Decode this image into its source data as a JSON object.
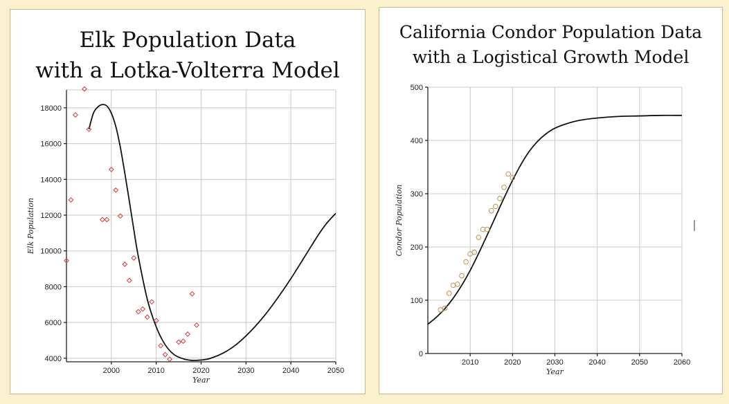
{
  "elk": {
    "title_line1": "Elk Population Data",
    "title_line2": "with a Lotka-Volterra Model"
  },
  "condor": {
    "title_line1": "California Condor Population Data",
    "title_line2": "with a Logistical Growth Model"
  },
  "chart_data": [
    {
      "type": "scatter",
      "title": "Elk Population Data with a Lotka-Volterra Model",
      "xlabel": "Year",
      "ylabel": "Elk Population",
      "xlim": [
        1990,
        2050
      ],
      "ylim": [
        3800,
        19000
      ],
      "xticks": [
        2000,
        2010,
        2020,
        2030,
        2040,
        2050
      ],
      "yticks": [
        4000,
        6000,
        8000,
        10000,
        12000,
        14000,
        16000,
        18000
      ],
      "grid": true,
      "marker": "diamond",
      "marker_color": "#d63a3a",
      "curve_color": "#111111",
      "points": [
        [
          1990,
          9450
        ],
        [
          1991,
          12850
        ],
        [
          1992,
          17600
        ],
        [
          1994,
          19050
        ],
        [
          1995,
          16800
        ],
        [
          1998,
          11750
        ],
        [
          1999,
          11750
        ],
        [
          2000,
          14550
        ],
        [
          2001,
          13400
        ],
        [
          2002,
          11950
        ],
        [
          2003,
          9250
        ],
        [
          2004,
          8350
        ],
        [
          2005,
          9600
        ],
        [
          2006,
          6600
        ],
        [
          2007,
          6750
        ],
        [
          2008,
          6300
        ],
        [
          2009,
          7150
        ],
        [
          2010,
          6100
        ],
        [
          2011,
          4700
        ],
        [
          2012,
          4200
        ],
        [
          2013,
          3950
        ],
        [
          2015,
          4900
        ],
        [
          2016,
          4950
        ],
        [
          2017,
          5350
        ],
        [
          2018,
          7600
        ],
        [
          2019,
          5850
        ]
      ],
      "model_curve": [
        [
          1995,
          16800
        ],
        [
          1996,
          17700
        ],
        [
          1997,
          18050
        ],
        [
          1998,
          18180
        ],
        [
          1999,
          18100
        ],
        [
          2000,
          17700
        ],
        [
          2001,
          16950
        ],
        [
          2002,
          15800
        ],
        [
          2003,
          14350
        ],
        [
          2004,
          12800
        ],
        [
          2005,
          11200
        ],
        [
          2006,
          9700
        ],
        [
          2008,
          7300
        ],
        [
          2010,
          5750
        ],
        [
          2012,
          4750
        ],
        [
          2014,
          4200
        ],
        [
          2016,
          3970
        ],
        [
          2018,
          3880
        ],
        [
          2020,
          3900
        ],
        [
          2022,
          3990
        ],
        [
          2025,
          4300
        ],
        [
          2028,
          4800
        ],
        [
          2031,
          5500
        ],
        [
          2034,
          6350
        ],
        [
          2037,
          7350
        ],
        [
          2040,
          8450
        ],
        [
          2043,
          9650
        ],
        [
          2046,
          10850
        ],
        [
          2048,
          11550
        ],
        [
          2050,
          12100
        ]
      ]
    },
    {
      "type": "scatter",
      "title": "California Condor Population Data with a Logistical Growth Model",
      "xlabel": "Year",
      "ylabel": "Condor Population",
      "xlim": [
        2000,
        2060
      ],
      "ylim": [
        0,
        500
      ],
      "xticks": [
        2010,
        2020,
        2030,
        2040,
        2050,
        2060
      ],
      "yticks": [
        0,
        100,
        200,
        300,
        400,
        500
      ],
      "grid": true,
      "marker": "circle",
      "marker_color": "#b8944a",
      "curve_color": "#111111",
      "points": [
        [
          2003,
          82
        ],
        [
          2004,
          85
        ],
        [
          2005,
          113
        ],
        [
          2006,
          128
        ],
        [
          2007,
          130
        ],
        [
          2008,
          146
        ],
        [
          2009,
          172
        ],
        [
          2010,
          187
        ],
        [
          2011,
          190
        ],
        [
          2012,
          218
        ],
        [
          2013,
          233
        ],
        [
          2014,
          233
        ],
        [
          2015,
          268
        ],
        [
          2016,
          276
        ],
        [
          2017,
          291
        ],
        [
          2018,
          312
        ],
        [
          2019,
          337
        ],
        [
          2020,
          330
        ]
      ],
      "model_curve": [
        [
          2000,
          55
        ],
        [
          2002,
          68
        ],
        [
          2004,
          84
        ],
        [
          2006,
          104
        ],
        [
          2008,
          128
        ],
        [
          2010,
          156
        ],
        [
          2012,
          188
        ],
        [
          2014,
          222
        ],
        [
          2016,
          257
        ],
        [
          2018,
          292
        ],
        [
          2020,
          325
        ],
        [
          2022,
          355
        ],
        [
          2024,
          380
        ],
        [
          2026,
          399
        ],
        [
          2028,
          413
        ],
        [
          2030,
          423
        ],
        [
          2033,
          432
        ],
        [
          2036,
          438
        ],
        [
          2040,
          442
        ],
        [
          2045,
          445
        ],
        [
          2050,
          446
        ],
        [
          2055,
          447
        ],
        [
          2060,
          447
        ]
      ]
    }
  ]
}
